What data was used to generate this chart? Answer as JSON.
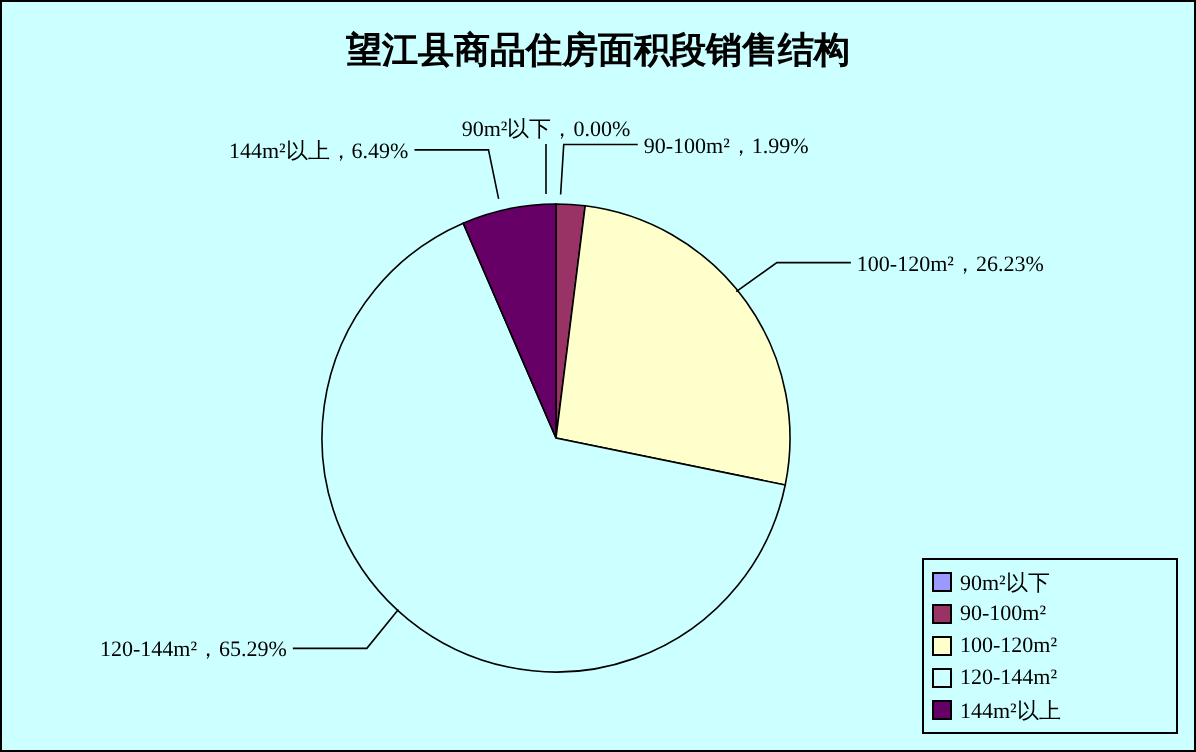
{
  "chart_data": {
    "type": "pie",
    "title": "望江县商品住房面积段销售结构",
    "categories": [
      "90m²以下",
      "90-100m²",
      "100-120m²",
      "120-144m²",
      "144m²以上"
    ],
    "values": [
      0.0,
      1.99,
      26.23,
      65.29,
      6.49
    ],
    "value_labels": [
      "，0.00%",
      "，1.99%",
      "，26.23%",
      "，65.29%",
      "，6.49%"
    ],
    "colors": [
      "#9999ff",
      "#993366",
      "#ffffcc",
      "#ccffff",
      "#660066"
    ],
    "legend": "bottom right"
  }
}
